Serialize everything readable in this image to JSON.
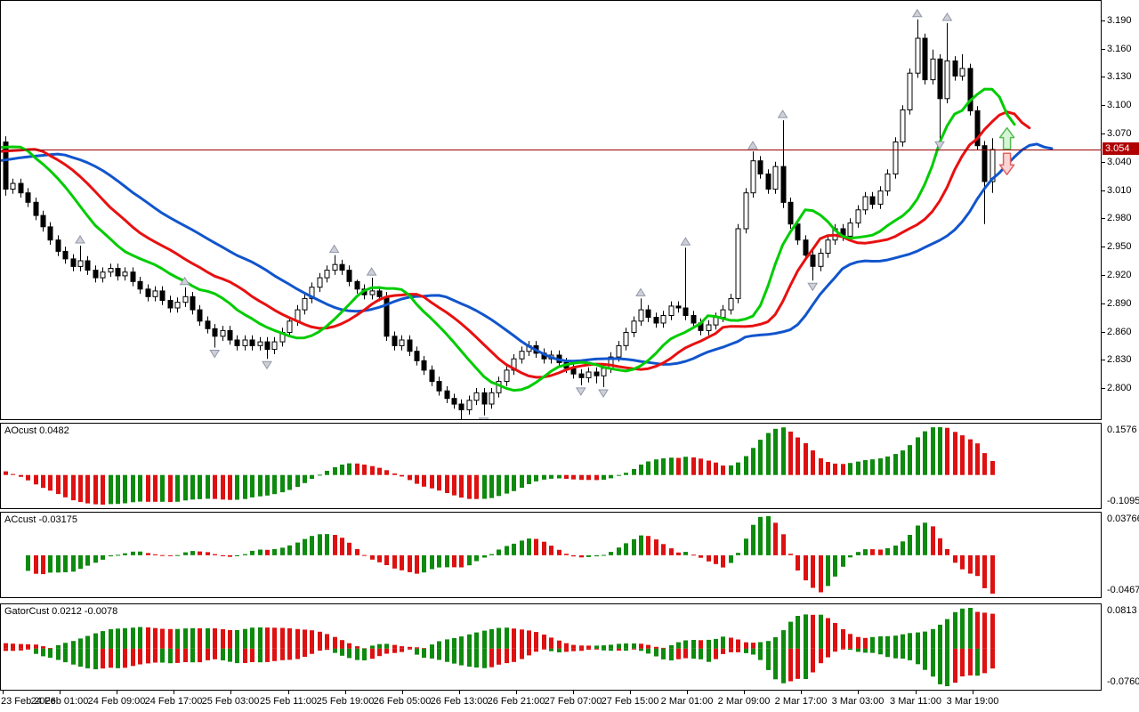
{
  "main": {
    "current_price_label": "3.054",
    "current_price": 3.054
  },
  "windows": {
    "ao": {
      "label": "AOcust 0.0482",
      "axis_max": "0.1576",
      "axis_min": "-0.1095"
    },
    "ac": {
      "label": "ACcust -0.03175",
      "axis_max": "0.03766",
      "axis_min": "-0.04671"
    },
    "gator": {
      "label": "GatorCust 0.0212 -0.0078",
      "axis_max": "0.0813",
      "axis_min": "-0.0760"
    }
  },
  "price_axis": {
    "ticks": [
      "3.190",
      "3.160",
      "3.130",
      "3.100",
      "3.070",
      "3.040",
      "3.010",
      "2.980",
      "2.950",
      "2.920",
      "2.890",
      "2.860",
      "2.830",
      "2.800"
    ]
  },
  "time_axis": {
    "labels": [
      "23 Feb 2026",
      "24 Feb 01:00",
      "24 Feb 09:00",
      "24 Feb 17:00",
      "25 Feb 03:00",
      "25 Feb 11:00",
      "25 Feb 19:00",
      "26 Feb 05:00",
      "26 Feb 13:00",
      "26 Feb 21:00",
      "27 Feb 07:00",
      "27 Feb 15:00",
      "2 Mar 01:00",
      "2 Mar 09:00",
      "2 Mar 17:00",
      "3 Mar 03:00",
      "3 Mar 11:00",
      "3 Mar 19:00"
    ]
  },
  "colors": {
    "candle_up_fill": "#FFFFFF",
    "candle_down_fill": "#000000",
    "candle_outline": "#000000",
    "alligator_jaw_blue": "#1155CC",
    "alligator_teeth_red": "#E81010",
    "alligator_lips_green": "#00CC00",
    "hist_up_green": "#0E8A0E",
    "hist_down_red": "#DD1111",
    "price_line": "#990000",
    "badge_bg": "#B00000",
    "badge_text": "#FFFFFF",
    "fractal_fill": "#CFCFD8",
    "fractal_edge": "#9098A8",
    "signal_up_stroke": "#55BB55",
    "signal_up_fill": "#D6F4D6",
    "signal_down_stroke": "#E06060",
    "signal_down_fill": "#F9D4D4",
    "border": "#000000",
    "background": "#FFFFFF"
  },
  "chart_data": {
    "type": "candlestick",
    "ylim": [
      2.768,
      3.2116
    ],
    "grid": false,
    "x_labels_from": "time_axis.labels",
    "candles": {
      "open": [
        3.062,
        3.012,
        3.018,
        3.008,
        2.998,
        2.984,
        2.972,
        2.958,
        2.946,
        2.938,
        2.93,
        2.936,
        2.926,
        2.918,
        2.924,
        2.928,
        2.92,
        2.924,
        2.914,
        2.906,
        2.898,
        2.904,
        2.894,
        2.886,
        2.892,
        2.898,
        2.884,
        2.872,
        2.864,
        2.856,
        2.862,
        2.852,
        2.846,
        2.852,
        2.846,
        2.85,
        2.842,
        2.85,
        2.86,
        2.872,
        2.884,
        2.896,
        2.908,
        2.918,
        2.926,
        2.932,
        2.926,
        2.914,
        2.906,
        2.9,
        2.904,
        2.898,
        2.856,
        2.846,
        2.852,
        2.84,
        2.83,
        2.82,
        2.808,
        2.798,
        2.79,
        2.784,
        2.778,
        2.788,
        2.796,
        2.784,
        2.796,
        2.808,
        2.82,
        2.832,
        2.84,
        2.846,
        2.838,
        2.832,
        2.836,
        2.828,
        2.822,
        2.816,
        2.812,
        2.818,
        2.814,
        2.822,
        2.834,
        2.846,
        2.86,
        2.872,
        2.884,
        2.876,
        2.87,
        2.878,
        2.888,
        2.886,
        2.878,
        2.87,
        2.862,
        2.868,
        2.876,
        2.884,
        2.896,
        2.97,
        3.008,
        3.042,
        3.028,
        3.012,
        3.036,
        2.998,
        2.975,
        2.958,
        2.942,
        2.93,
        2.944,
        2.958,
        2.97,
        2.962,
        2.976,
        2.99,
        3.004,
        2.996,
        3.01,
        3.028,
        3.062,
        3.096,
        3.135,
        3.172,
        3.128,
        3.15,
        3.108,
        3.148,
        3.132,
        3.14,
        3.095,
        3.058,
        3.02
      ],
      "high": [
        3.068,
        3.023,
        3.023,
        3.013,
        3.003,
        2.989,
        2.977,
        2.963,
        2.951,
        2.943,
        2.952,
        2.941,
        2.931,
        2.929,
        2.933,
        2.933,
        2.929,
        2.929,
        2.919,
        2.911,
        2.909,
        2.909,
        2.899,
        2.897,
        2.908,
        2.903,
        2.889,
        2.877,
        2.869,
        2.867,
        2.867,
        2.857,
        2.857,
        2.857,
        2.855,
        2.855,
        2.855,
        2.865,
        2.877,
        2.889,
        2.901,
        2.913,
        2.923,
        2.931,
        2.942,
        2.937,
        2.931,
        2.916,
        2.911,
        2.918,
        2.909,
        2.903,
        2.861,
        2.857,
        2.857,
        2.845,
        2.835,
        2.825,
        2.813,
        2.803,
        2.795,
        2.789,
        2.793,
        2.801,
        2.801,
        2.801,
        2.813,
        2.825,
        2.837,
        2.845,
        2.851,
        2.851,
        2.843,
        2.841,
        2.841,
        2.833,
        2.827,
        2.821,
        2.823,
        2.823,
        2.827,
        2.839,
        2.851,
        2.865,
        2.877,
        2.896,
        2.889,
        2.881,
        2.883,
        2.893,
        2.893,
        2.95,
        2.883,
        2.875,
        2.873,
        2.881,
        2.889,
        2.901,
        2.975,
        3.013,
        3.052,
        3.047,
        3.033,
        3.041,
        3.085,
        3.003,
        2.98,
        2.963,
        2.947,
        2.949,
        2.963,
        2.975,
        2.975,
        2.981,
        2.995,
        3.009,
        3.009,
        3.015,
        3.033,
        3.067,
        3.101,
        3.14,
        3.192,
        3.177,
        3.16,
        3.155,
        3.188,
        3.153,
        3.155,
        3.145,
        3.1,
        3.063,
        3.066
      ],
      "low": [
        3.005,
        3.007,
        3.003,
        2.993,
        2.979,
        2.967,
        2.953,
        2.941,
        2.933,
        2.925,
        2.925,
        2.921,
        2.913,
        2.913,
        2.919,
        2.915,
        2.915,
        2.909,
        2.901,
        2.893,
        2.893,
        2.889,
        2.881,
        2.881,
        2.887,
        2.879,
        2.867,
        2.859,
        2.844,
        2.851,
        2.847,
        2.841,
        2.841,
        2.841,
        2.841,
        2.832,
        2.837,
        2.845,
        2.855,
        2.867,
        2.879,
        2.891,
        2.903,
        2.913,
        2.921,
        2.921,
        2.909,
        2.901,
        2.895,
        2.895,
        2.893,
        2.851,
        2.841,
        2.841,
        2.835,
        2.825,
        2.815,
        2.803,
        2.793,
        2.785,
        2.779,
        2.768,
        2.773,
        2.783,
        2.772,
        2.779,
        2.791,
        2.803,
        2.815,
        2.827,
        2.835,
        2.833,
        2.827,
        2.827,
        2.823,
        2.817,
        2.811,
        2.804,
        2.807,
        2.806,
        2.802,
        2.817,
        2.829,
        2.841,
        2.855,
        2.867,
        2.871,
        2.865,
        2.865,
        2.873,
        2.881,
        2.873,
        2.865,
        2.857,
        2.857,
        2.863,
        2.871,
        2.879,
        2.891,
        2.965,
        3.003,
        3.023,
        3.007,
        3.007,
        2.992,
        2.97,
        2.953,
        2.937,
        2.915,
        2.925,
        2.939,
        2.953,
        2.957,
        2.957,
        2.971,
        2.985,
        2.991,
        2.991,
        3.005,
        3.023,
        3.057,
        3.091,
        3.13,
        3.123,
        3.123,
        3.065,
        3.103,
        3.127,
        3.127,
        3.09,
        3.053,
        2.975,
        3.008
      ],
      "close": [
        3.012,
        3.018,
        3.008,
        2.998,
        2.984,
        2.972,
        2.958,
        2.946,
        2.938,
        2.93,
        2.936,
        2.926,
        2.918,
        2.924,
        2.928,
        2.92,
        2.924,
        2.914,
        2.906,
        2.898,
        2.904,
        2.894,
        2.886,
        2.892,
        2.898,
        2.884,
        2.872,
        2.864,
        2.856,
        2.862,
        2.852,
        2.846,
        2.852,
        2.846,
        2.85,
        2.842,
        2.85,
        2.86,
        2.872,
        2.884,
        2.896,
        2.908,
        2.918,
        2.926,
        2.932,
        2.926,
        2.914,
        2.906,
        2.9,
        2.904,
        2.898,
        2.856,
        2.846,
        2.852,
        2.84,
        2.83,
        2.82,
        2.808,
        2.798,
        2.79,
        2.784,
        2.778,
        2.788,
        2.796,
        2.784,
        2.796,
        2.808,
        2.82,
        2.832,
        2.84,
        2.846,
        2.838,
        2.832,
        2.836,
        2.828,
        2.822,
        2.816,
        2.812,
        2.818,
        2.814,
        2.822,
        2.834,
        2.846,
        2.86,
        2.872,
        2.884,
        2.876,
        2.87,
        2.878,
        2.888,
        2.886,
        2.878,
        2.87,
        2.862,
        2.868,
        2.876,
        2.884,
        2.896,
        2.97,
        3.008,
        3.042,
        3.028,
        3.012,
        3.036,
        2.998,
        2.975,
        2.958,
        2.942,
        2.93,
        2.944,
        2.958,
        2.97,
        2.962,
        2.976,
        2.99,
        3.004,
        2.996,
        3.01,
        3.028,
        3.062,
        3.096,
        3.135,
        3.172,
        3.128,
        3.15,
        3.108,
        3.148,
        3.132,
        3.14,
        3.095,
        3.058,
        3.02,
        3.054
      ]
    },
    "warmup_close": [
      3.018,
      3.02,
      3.022,
      3.02,
      3.018,
      3.022,
      3.024,
      3.022,
      3.02,
      3.024,
      3.026,
      3.028,
      3.03,
      3.032,
      3.036,
      3.04,
      3.044,
      3.048,
      3.05,
      3.052,
      3.054,
      3.056,
      3.058,
      3.06,
      3.06,
      3.058,
      3.056,
      3.058,
      3.06,
      3.058,
      3.056,
      3.057,
      3.058,
      3.056
    ],
    "indicators": {
      "alligator": {
        "jaw_period": 13,
        "jaw_shift": 8,
        "teeth_period": 8,
        "teeth_shift": 5,
        "lips_period": 5,
        "lips_shift": 3
      },
      "ao": {
        "name": "AOcust",
        "current": 0.0482,
        "axis_range": [
          -0.1095,
          0.1576
        ]
      },
      "ac": {
        "name": "ACcust",
        "current": -0.03175,
        "axis_range": [
          -0.04671,
          0.03766
        ]
      },
      "gator": {
        "name": "GatorCust",
        "current_up": 0.0212,
        "current_down": -0.0078,
        "axis_range": [
          -0.076,
          0.0813
        ]
      }
    },
    "price_line": 3.054,
    "signal_arrows": [
      {
        "direction": "up",
        "bar": 134,
        "price_top": 3.077
      },
      {
        "direction": "down",
        "bar": 134,
        "price_top": 3.05
      }
    ]
  }
}
